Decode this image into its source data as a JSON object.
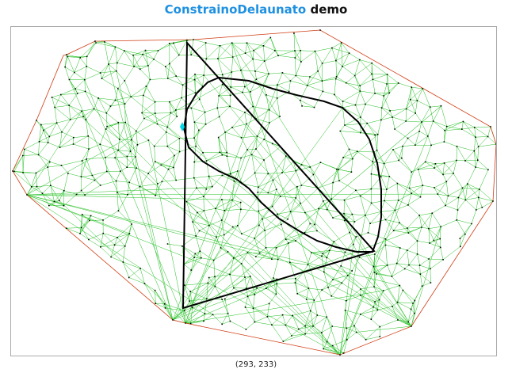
{
  "title": {
    "accent": "ConstrainoDelaunato",
    "rest": " demo"
  },
  "status": {
    "cursor": "(293, 233)"
  },
  "colors": {
    "accent": "#1e90e0",
    "mesh": "#22c022",
    "hull": "#d03a10",
    "constraint": "#000000",
    "highlight": "#00d8e8"
  }
}
